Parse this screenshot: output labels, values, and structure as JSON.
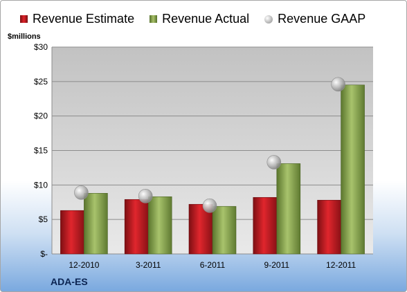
{
  "legend": [
    {
      "label": "Revenue Estimate",
      "swatch": "estimate"
    },
    {
      "label": "Revenue Actual",
      "swatch": "actual"
    },
    {
      "label": "Revenue GAAP",
      "swatch": "gaap"
    }
  ],
  "unit_label": "$millions",
  "ticker": "ADA-ES",
  "colors": {
    "estimate": "#c8171d",
    "actual": "#8faa4f",
    "gaap": "#b0b0b0"
  },
  "chart_data": {
    "type": "bar",
    "categories": [
      "12-2010",
      "3-2011",
      "6-2011",
      "9-2011",
      "12-2011"
    ],
    "series": [
      {
        "name": "Revenue Estimate",
        "values": [
          6.3,
          7.9,
          7.2,
          8.2,
          7.8
        ]
      },
      {
        "name": "Revenue Actual",
        "values": [
          8.8,
          8.3,
          6.9,
          13.1,
          24.5
        ]
      },
      {
        "name": "Revenue GAAP",
        "values": [
          8.9,
          8.4,
          7.0,
          13.3,
          24.6
        ]
      }
    ],
    "ylim": [
      0,
      30
    ],
    "yticks": [
      0,
      5,
      10,
      15,
      20,
      25,
      30
    ],
    "ytick_labels": [
      "$-",
      "$5",
      "$10",
      "$15",
      "$20",
      "$25",
      "$30"
    ],
    "grid": true
  }
}
